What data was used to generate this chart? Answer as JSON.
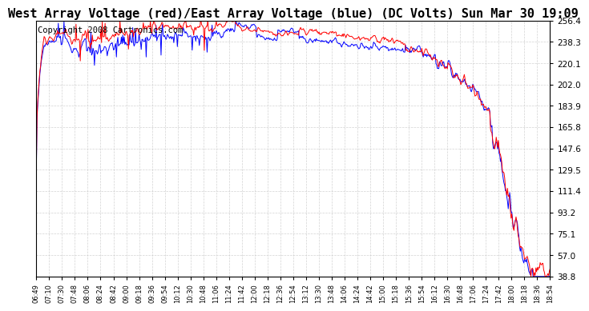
{
  "title": "West Array Voltage (red)/East Array Voltage (blue) (DC Volts) Sun Mar 30 19:09",
  "copyright": "Copyright 2008 Cartronics.com",
  "ylim": [
    38.8,
    256.4
  ],
  "yticks": [
    38.8,
    57.0,
    75.1,
    93.2,
    111.4,
    129.5,
    147.6,
    165.8,
    183.9,
    202.0,
    220.1,
    238.3,
    256.4
  ],
  "xtick_labels": [
    "06:49",
    "07:10",
    "07:30",
    "07:48",
    "08:06",
    "08:24",
    "08:42",
    "09:00",
    "09:18",
    "09:36",
    "09:54",
    "10:12",
    "10:30",
    "10:48",
    "11:06",
    "11:24",
    "11:42",
    "12:00",
    "12:18",
    "12:36",
    "12:54",
    "13:12",
    "13:30",
    "13:48",
    "14:06",
    "14:24",
    "14:42",
    "15:00",
    "15:18",
    "15:36",
    "15:54",
    "16:12",
    "16:30",
    "16:48",
    "17:06",
    "17:24",
    "17:42",
    "18:00",
    "18:18",
    "18:36",
    "18:54"
  ],
  "background_color": "#ffffff",
  "plot_bg_color": "#ffffff",
  "grid_color": "#c8c8c8",
  "red_color": "#ff0000",
  "blue_color": "#0000ff",
  "title_fontsize": 11,
  "copyright_fontsize": 7.5
}
